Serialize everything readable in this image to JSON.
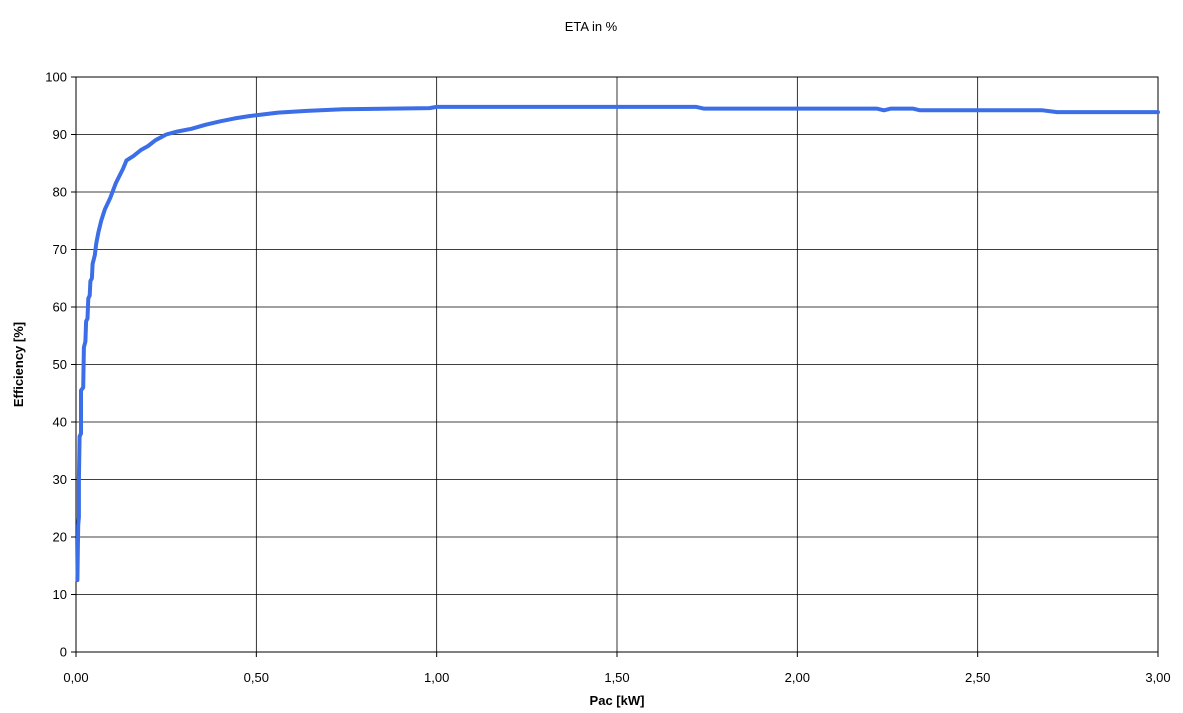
{
  "chart_data": {
    "type": "line",
    "title": "ETA in %",
    "xlabel": "Pac [kW]",
    "ylabel": "Efficiency [%]",
    "xlim": [
      0,
      3
    ],
    "ylim": [
      0,
      100
    ],
    "x_ticks": [
      "0,00",
      "0,50",
      "1,00",
      "1,50",
      "2,00",
      "2,50",
      "3,00"
    ],
    "y_ticks": [
      "0",
      "10",
      "20",
      "30",
      "40",
      "50",
      "60",
      "70",
      "80",
      "90",
      "100"
    ],
    "grid": true,
    "legend": false,
    "series": [
      {
        "color": "#3c6ee8",
        "points": [
          [
            0.004,
            12.5
          ],
          [
            0.006,
            22.0
          ],
          [
            0.008,
            23.5
          ],
          [
            0.008,
            30.0
          ],
          [
            0.01,
            37.5
          ],
          [
            0.014,
            38.0
          ],
          [
            0.014,
            45.5
          ],
          [
            0.02,
            46.0
          ],
          [
            0.022,
            53.0
          ],
          [
            0.026,
            54.0
          ],
          [
            0.028,
            57.5
          ],
          [
            0.032,
            58.0
          ],
          [
            0.034,
            61.5
          ],
          [
            0.038,
            62.0
          ],
          [
            0.04,
            64.5
          ],
          [
            0.044,
            65.0
          ],
          [
            0.046,
            67.5
          ],
          [
            0.052,
            69.0
          ],
          [
            0.056,
            71.0
          ],
          [
            0.062,
            73.0
          ],
          [
            0.07,
            75.0
          ],
          [
            0.08,
            77.0
          ],
          [
            0.095,
            79.0
          ],
          [
            0.11,
            81.5
          ],
          [
            0.13,
            84.0
          ],
          [
            0.14,
            85.5
          ],
          [
            0.16,
            86.3
          ],
          [
            0.18,
            87.3
          ],
          [
            0.2,
            88.0
          ],
          [
            0.22,
            89.0
          ],
          [
            0.25,
            90.0
          ],
          [
            0.28,
            90.5
          ],
          [
            0.32,
            91.0
          ],
          [
            0.36,
            91.7
          ],
          [
            0.4,
            92.3
          ],
          [
            0.44,
            92.8
          ],
          [
            0.48,
            93.2
          ],
          [
            0.52,
            93.5
          ],
          [
            0.56,
            93.8
          ],
          [
            0.64,
            94.1
          ],
          [
            0.74,
            94.4
          ],
          [
            0.98,
            94.6
          ],
          [
            1.0,
            94.8
          ],
          [
            1.3,
            94.8
          ],
          [
            1.72,
            94.8
          ],
          [
            1.74,
            94.5
          ],
          [
            2.22,
            94.5
          ],
          [
            2.24,
            94.2
          ],
          [
            2.26,
            94.5
          ],
          [
            2.32,
            94.5
          ],
          [
            2.34,
            94.2
          ],
          [
            2.68,
            94.2
          ],
          [
            2.72,
            93.9
          ],
          [
            3.0,
            93.9
          ]
        ]
      }
    ]
  }
}
